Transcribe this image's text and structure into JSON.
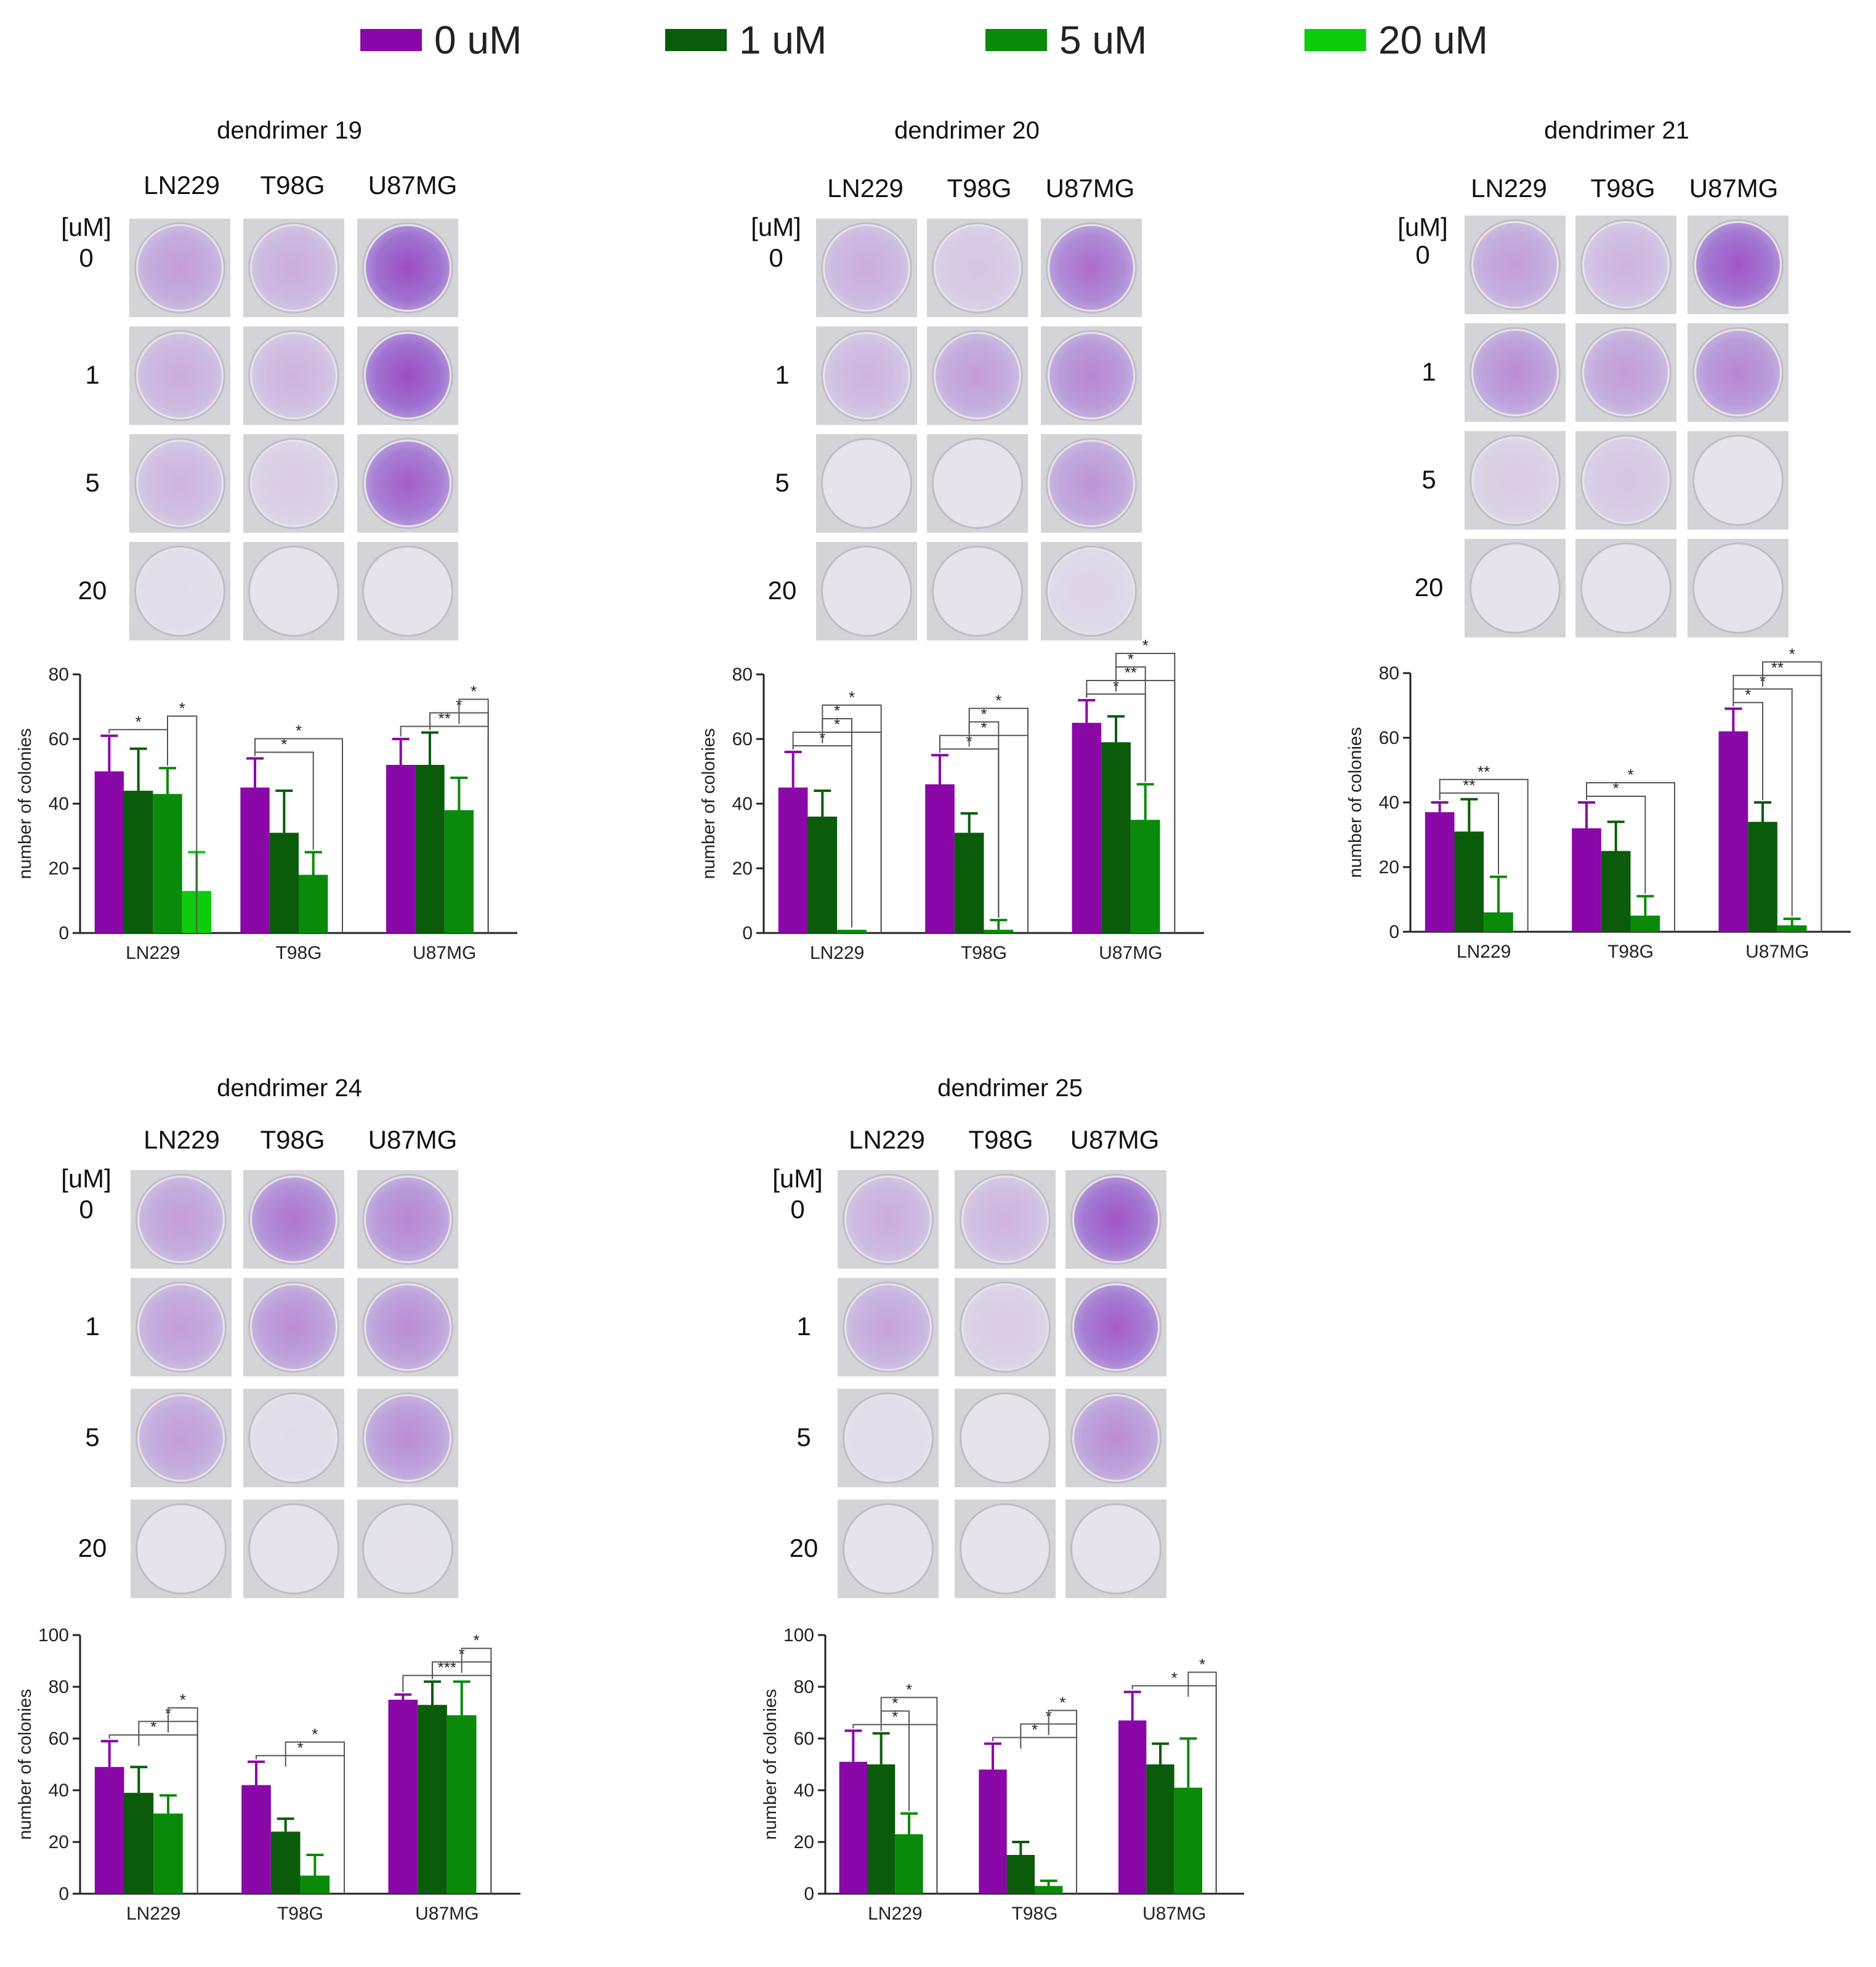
{
  "legend": [
    {
      "label": "0 uM",
      "color": "#8a07a8"
    },
    {
      "label": "1 uM",
      "color": "#0a5c0a"
    },
    {
      "label": "5 uM",
      "color": "#0a8a0a"
    },
    {
      "label": "20 uM",
      "color": "#0ccc0c"
    }
  ],
  "concentration_header": "[uM]",
  "panels": [
    {
      "title": "dendrimer 19",
      "cell_lines": [
        "LN229",
        "T98G",
        "U87MG"
      ],
      "concentrations": [
        "0",
        "1",
        "5",
        "20"
      ],
      "stain_levels": [
        [
          0.45,
          0.35,
          0.95
        ],
        [
          0.35,
          0.3,
          0.95
        ],
        [
          0.3,
          0.15,
          0.85
        ],
        [
          0.05,
          0.0,
          0.0
        ]
      ]
    },
    {
      "title": "dendrimer 20",
      "cell_lines": [
        "LN229",
        "T98G",
        "U87MG"
      ],
      "concentrations": [
        "0",
        "1",
        "5",
        "20"
      ],
      "stain_levels": [
        [
          0.35,
          0.2,
          0.75
        ],
        [
          0.3,
          0.45,
          0.6
        ],
        [
          0.0,
          0.0,
          0.5
        ],
        [
          0.0,
          0.0,
          0.1
        ]
      ]
    },
    {
      "title": "dendrimer 21",
      "cell_lines": [
        "LN229",
        "T98G",
        "U87MG"
      ],
      "concentrations": [
        "0",
        "1",
        "5",
        "20"
      ],
      "stain_levels": [
        [
          0.45,
          0.3,
          0.9
        ],
        [
          0.55,
          0.45,
          0.6
        ],
        [
          0.15,
          0.2,
          0.0
        ],
        [
          0.0,
          0.0,
          0.0
        ]
      ]
    },
    {
      "title": "dendrimer 24",
      "cell_lines": [
        "LN229",
        "T98G",
        "U87MG"
      ],
      "concentrations": [
        "0",
        "1",
        "5",
        "20"
      ],
      "stain_levels": [
        [
          0.45,
          0.7,
          0.6
        ],
        [
          0.45,
          0.55,
          0.55
        ],
        [
          0.45,
          0.05,
          0.55
        ],
        [
          0.0,
          0.0,
          0.02
        ]
      ]
    },
    {
      "title": "dendrimer 25",
      "cell_lines": [
        "LN229",
        "T98G",
        "U87MG"
      ],
      "concentrations": [
        "0",
        "1",
        "5",
        "20"
      ],
      "stain_levels": [
        [
          0.35,
          0.3,
          0.9
        ],
        [
          0.4,
          0.15,
          0.85
        ],
        [
          0.05,
          0.0,
          0.55
        ],
        [
          0.0,
          0.0,
          0.0
        ]
      ]
    }
  ],
  "chart_data": [
    {
      "type": "bar",
      "title": "dendrimer 19",
      "categories": [
        "LN229",
        "T98G",
        "U87MG"
      ],
      "ylabel": "number of colonies",
      "ylim": [
        0,
        80
      ],
      "yticks": [
        "0",
        "20",
        "40",
        "60",
        "80"
      ],
      "series": [
        {
          "name": "0 uM",
          "values": [
            50,
            45,
            52
          ],
          "errors": [
            11,
            9,
            8
          ]
        },
        {
          "name": "1 uM",
          "values": [
            44,
            31,
            52
          ],
          "errors": [
            13,
            13,
            10
          ]
        },
        {
          "name": "5 uM",
          "values": [
            43,
            18,
            38
          ],
          "errors": [
            8,
            7,
            10
          ]
        },
        {
          "name": "20 uM",
          "values": [
            13,
            0,
            0
          ],
          "errors": [
            12,
            0,
            0
          ]
        }
      ],
      "significance": [
        {
          "group": 0,
          "from": 0,
          "to": 2,
          "label": "*"
        },
        {
          "group": 0,
          "from": 2,
          "to": 3,
          "label": "*"
        },
        {
          "group": 1,
          "from": 0,
          "to": 2,
          "label": "*"
        },
        {
          "group": 1,
          "from": 0,
          "to": 3,
          "label": "*"
        },
        {
          "group": 2,
          "from": 0,
          "to": 3,
          "label": "**"
        },
        {
          "group": 2,
          "from": 1,
          "to": 3,
          "label": "*"
        },
        {
          "group": 2,
          "from": 2,
          "to": 3,
          "label": "*"
        }
      ]
    },
    {
      "type": "bar",
      "title": "dendrimer 20",
      "categories": [
        "LN229",
        "T98G",
        "U87MG"
      ],
      "ylabel": "number of colonies",
      "ylim": [
        0,
        80
      ],
      "yticks": [
        "0",
        "20",
        "40",
        "60",
        "80"
      ],
      "series": [
        {
          "name": "0 uM",
          "values": [
            45,
            46,
            65
          ],
          "errors": [
            11,
            9,
            7
          ]
        },
        {
          "name": "1 uM",
          "values": [
            36,
            31,
            59
          ],
          "errors": [
            8,
            6,
            8
          ]
        },
        {
          "name": "5 uM",
          "values": [
            1,
            1,
            35
          ],
          "errors": [
            0,
            3,
            11
          ]
        },
        {
          "name": "20 uM",
          "values": [
            0,
            0,
            0
          ],
          "errors": [
            0,
            0,
            0
          ]
        }
      ],
      "significance": [
        {
          "group": 0,
          "from": 0,
          "to": 2,
          "label": "*"
        },
        {
          "group": 0,
          "from": 0,
          "to": 3,
          "label": "*"
        },
        {
          "group": 0,
          "from": 1,
          "to": 2,
          "label": "*"
        },
        {
          "group": 0,
          "from": 1,
          "to": 3,
          "label": "*"
        },
        {
          "group": 1,
          "from": 0,
          "to": 2,
          "label": "*"
        },
        {
          "group": 1,
          "from": 0,
          "to": 3,
          "label": "*"
        },
        {
          "group": 1,
          "from": 1,
          "to": 2,
          "label": "*"
        },
        {
          "group": 1,
          "from": 1,
          "to": 3,
          "label": "*"
        },
        {
          "group": 2,
          "from": 0,
          "to": 2,
          "label": "*"
        },
        {
          "group": 2,
          "from": 0,
          "to": 3,
          "label": "**"
        },
        {
          "group": 2,
          "from": 1,
          "to": 2,
          "label": "*"
        },
        {
          "group": 2,
          "from": 1,
          "to": 3,
          "label": "*"
        }
      ]
    },
    {
      "type": "bar",
      "title": "dendrimer 21",
      "categories": [
        "LN229",
        "T98G",
        "U87MG"
      ],
      "ylabel": "number of colonies",
      "ylim": [
        0,
        80
      ],
      "yticks": [
        "0",
        "20",
        "40",
        "60",
        "80"
      ],
      "series": [
        {
          "name": "0 uM",
          "values": [
            37,
            32,
            62
          ],
          "errors": [
            3,
            8,
            7
          ]
        },
        {
          "name": "1 uM",
          "values": [
            31,
            25,
            34
          ],
          "errors": [
            10,
            9,
            6
          ]
        },
        {
          "name": "5 uM",
          "values": [
            6,
            5,
            2
          ],
          "errors": [
            11,
            6,
            2
          ]
        },
        {
          "name": "20 uM",
          "values": [
            0,
            0,
            0
          ],
          "errors": [
            0,
            0,
            0
          ]
        }
      ],
      "significance": [
        {
          "group": 0,
          "from": 0,
          "to": 2,
          "label": "**"
        },
        {
          "group": 0,
          "from": 0,
          "to": 3,
          "label": "**"
        },
        {
          "group": 1,
          "from": 0,
          "to": 2,
          "label": "*"
        },
        {
          "group": 1,
          "from": 0,
          "to": 3,
          "label": "*"
        },
        {
          "group": 2,
          "from": 0,
          "to": 1,
          "label": "*"
        },
        {
          "group": 2,
          "from": 0,
          "to": 2,
          "label": "*"
        },
        {
          "group": 2,
          "from": 0,
          "to": 3,
          "label": "**"
        },
        {
          "group": 2,
          "from": 1,
          "to": 3,
          "label": "*"
        }
      ]
    },
    {
      "type": "bar",
      "title": "dendrimer 24",
      "categories": [
        "LN229",
        "T98G",
        "U87MG"
      ],
      "ylabel": "number of colonies",
      "ylim": [
        0,
        100
      ],
      "yticks": [
        "0",
        "20",
        "40",
        "60",
        "80",
        "100"
      ],
      "series": [
        {
          "name": "0 uM",
          "values": [
            49,
            42,
            75
          ],
          "errors": [
            10,
            9,
            2
          ]
        },
        {
          "name": "1 uM",
          "values": [
            39,
            24,
            73
          ],
          "errors": [
            10,
            5,
            9
          ]
        },
        {
          "name": "5 uM",
          "values": [
            31,
            7,
            69
          ],
          "errors": [
            7,
            8,
            13
          ]
        },
        {
          "name": "20 uM",
          "values": [
            0,
            0,
            0
          ],
          "errors": [
            0,
            0,
            0
          ]
        }
      ],
      "significance": [
        {
          "group": 0,
          "from": 0,
          "to": 3,
          "label": "*"
        },
        {
          "group": 0,
          "from": 1,
          "to": 3,
          "label": "*"
        },
        {
          "group": 0,
          "from": 2,
          "to": 3,
          "label": "*"
        },
        {
          "group": 1,
          "from": 0,
          "to": 3,
          "label": "*"
        },
        {
          "group": 1,
          "from": 1,
          "to": 3,
          "label": "*"
        },
        {
          "group": 2,
          "from": 0,
          "to": 3,
          "label": "***"
        },
        {
          "group": 2,
          "from": 1,
          "to": 3,
          "label": "*"
        },
        {
          "group": 2,
          "from": 2,
          "to": 3,
          "label": "*"
        }
      ]
    },
    {
      "type": "bar",
      "title": "dendrimer 25",
      "categories": [
        "LN229",
        "T98G",
        "U87MG"
      ],
      "ylabel": "number of colonies",
      "ylim": [
        0,
        100
      ],
      "yticks": [
        "0",
        "20",
        "40",
        "60",
        "80",
        "100"
      ],
      "series": [
        {
          "name": "0 uM",
          "values": [
            51,
            48,
            67
          ],
          "errors": [
            12,
            10,
            11
          ]
        },
        {
          "name": "1 uM",
          "values": [
            50,
            15,
            50
          ],
          "errors": [
            12,
            5,
            8
          ]
        },
        {
          "name": "5 uM",
          "values": [
            23,
            3,
            41
          ],
          "errors": [
            8,
            2,
            19
          ]
        },
        {
          "name": "20 uM",
          "values": [
            0,
            0,
            0
          ],
          "errors": [
            0,
            0,
            0
          ]
        }
      ],
      "significance": [
        {
          "group": 0,
          "from": 0,
          "to": 3,
          "label": "*"
        },
        {
          "group": 0,
          "from": 1,
          "to": 2,
          "label": "*"
        },
        {
          "group": 0,
          "from": 1,
          "to": 3,
          "label": "*"
        },
        {
          "group": 1,
          "from": 0,
          "to": 3,
          "label": "*"
        },
        {
          "group": 1,
          "from": 1,
          "to": 3,
          "label": "*"
        },
        {
          "group": 1,
          "from": 2,
          "to": 3,
          "label": "*"
        },
        {
          "group": 2,
          "from": 0,
          "to": 3,
          "label": "*"
        },
        {
          "group": 2,
          "from": 2,
          "to": 3,
          "label": "*"
        }
      ]
    }
  ]
}
